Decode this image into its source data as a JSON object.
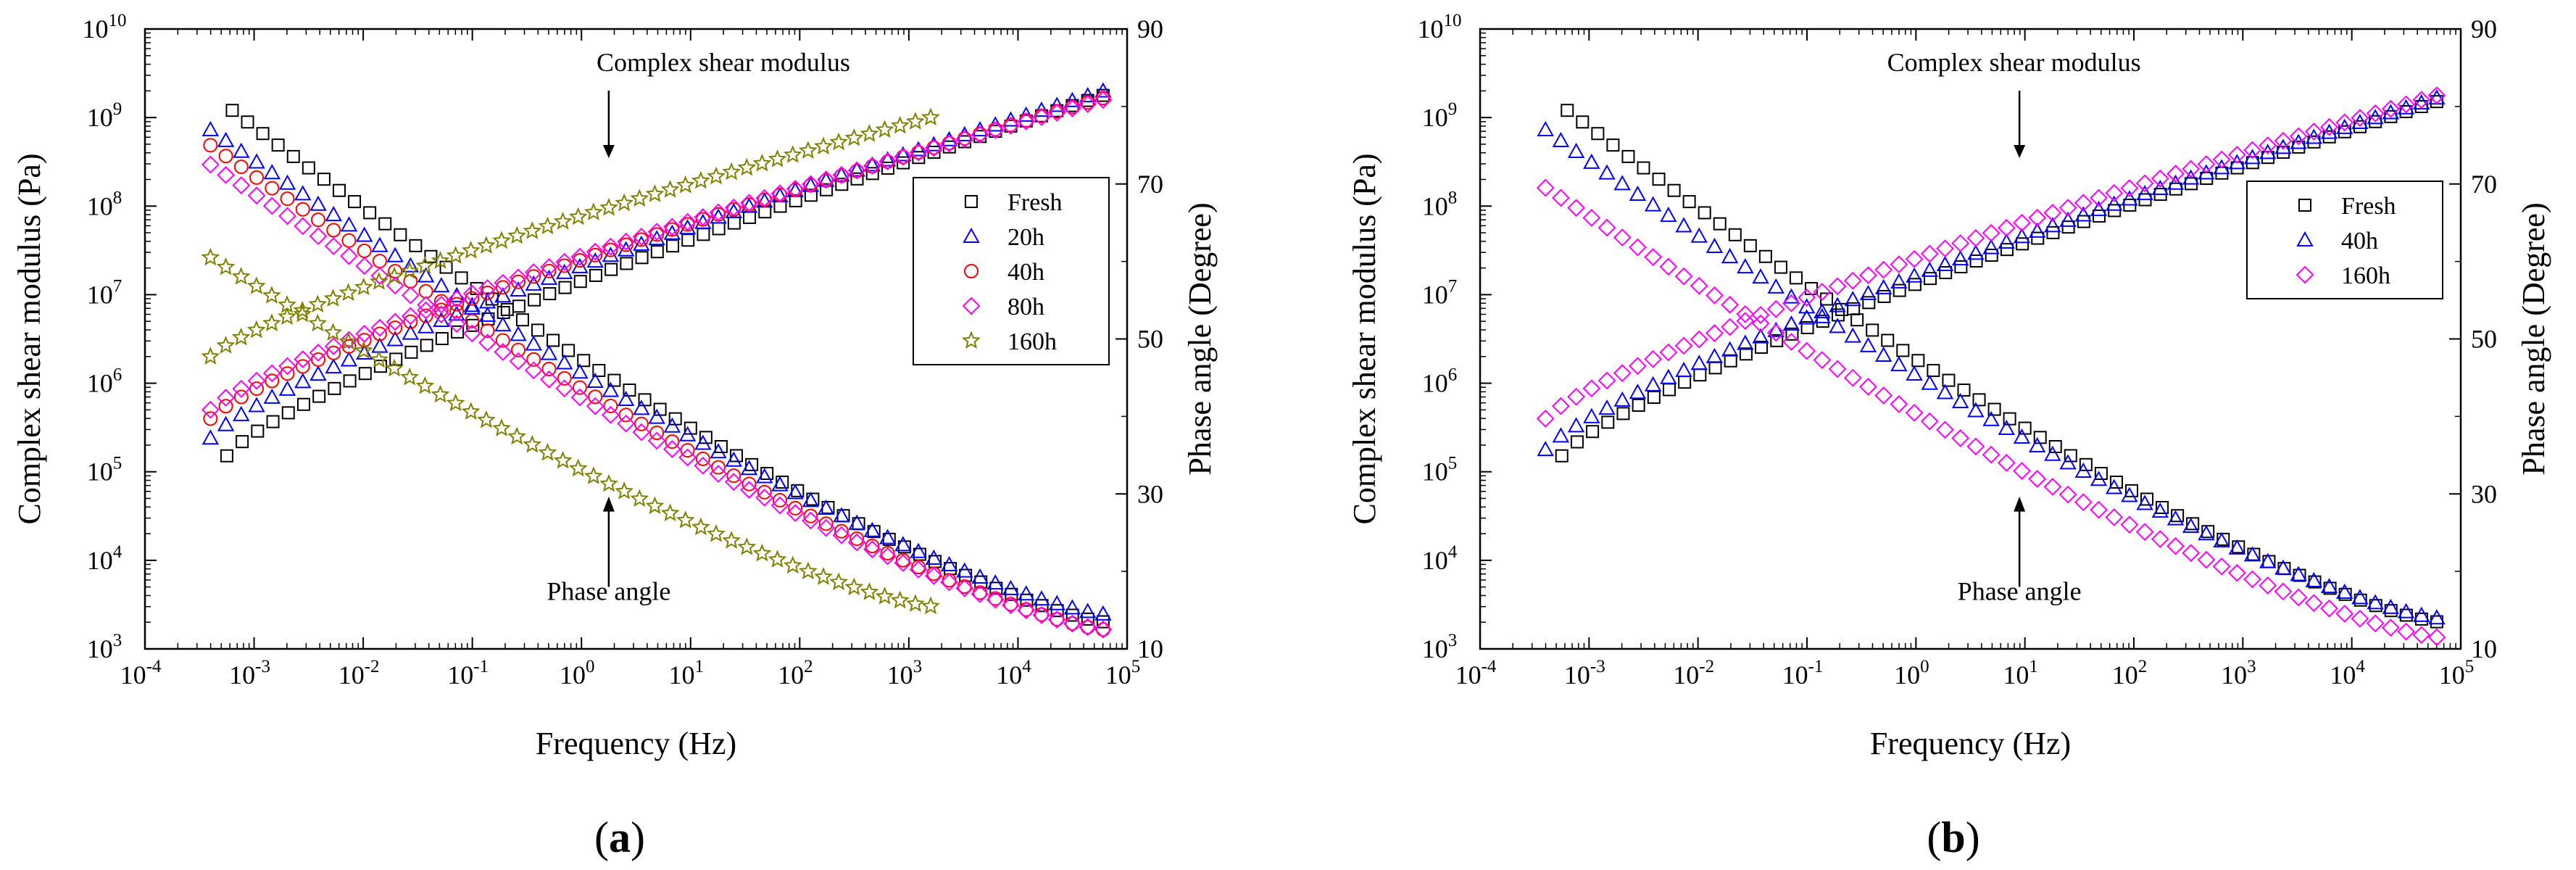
{
  "chart_data": [
    {
      "type": "scatter",
      "panel": "(a)",
      "panel_letter": "a",
      "xlabel": "Frequency (Hz)",
      "ylabel_left": "Complex shear modulus (Pa)",
      "ylabel_right": "Phase angle (Degree)",
      "xscale": "log",
      "xlim_exp": [
        -4,
        5
      ],
      "yscale_left": "log",
      "ylim_left_exp": [
        3,
        10
      ],
      "ylim_right": [
        10,
        90
      ],
      "right_ticks": [
        10,
        30,
        50,
        70,
        90
      ],
      "legend": [
        "Fresh",
        "20h",
        "40h",
        "80h",
        "160h"
      ],
      "legend_position": "center-right",
      "annotations": [
        "Complex shear modulus",
        "Phase angle"
      ],
      "series": [
        {
          "name": "Fresh",
          "marker": "square",
          "color": "#000000",
          "modulus_log10": {
            "start": [
              -3.25,
              5.18
            ],
            "end": [
              4.78,
              9.25
            ]
          },
          "phase_deg": {
            "start": [
              -3.2,
              79.5
            ],
            "end": [
              4.78,
              13.5
            ]
          }
        },
        {
          "name": "20h",
          "marker": "triangle",
          "color": "#0000ff",
          "modulus_log10": {
            "start": [
              -3.4,
              5.38
            ],
            "end": [
              4.78,
              9.3
            ]
          },
          "phase_deg": {
            "start": [
              -3.4,
              77
            ],
            "end": [
              4.78,
              14.5
            ]
          }
        },
        {
          "name": "40h",
          "marker": "circle",
          "color": "#ff0000",
          "modulus_log10": {
            "start": [
              -3.4,
              5.6
            ],
            "end": [
              4.78,
              9.22
            ]
          },
          "phase_deg": {
            "start": [
              -3.4,
              75
            ],
            "end": [
              4.78,
              12.5
            ]
          }
        },
        {
          "name": "80h",
          "marker": "diamond",
          "color": "#ff00ff",
          "modulus_log10": {
            "start": [
              -3.4,
              5.7
            ],
            "end": [
              4.78,
              9.2
            ]
          },
          "phase_deg": {
            "start": [
              -3.4,
              72.5
            ],
            "end": [
              4.78,
              12.5
            ]
          }
        },
        {
          "name": "160h",
          "marker": "star",
          "color": "#808000",
          "modulus_log10": {
            "start": [
              -3.4,
              6.3
            ],
            "end": [
              3.2,
              9.0
            ]
          },
          "phase_deg": {
            "start": [
              -3.4,
              60.5
            ],
            "end": [
              3.2,
              15.5
            ]
          }
        }
      ]
    },
    {
      "type": "scatter",
      "panel": "(b)",
      "panel_letter": "b",
      "xlabel": "Frequency (Hz)",
      "ylabel_left": "Complex shear modulus (Pa)",
      "ylabel_right": "Phase angle (Degree)",
      "xscale": "log",
      "xlim_exp": [
        -4,
        5
      ],
      "yscale_left": "log",
      "ylim_left_exp": [
        3,
        10
      ],
      "ylim_right": [
        10,
        90
      ],
      "right_ticks": [
        10,
        30,
        50,
        70,
        90
      ],
      "legend": [
        "Fresh",
        "40h",
        "160h"
      ],
      "legend_position": "center-right",
      "annotations": [
        "Complex shear modulus",
        "Phase angle"
      ],
      "series": [
        {
          "name": "Fresh",
          "marker": "square",
          "color": "#000000",
          "modulus_log10": {
            "start": [
              -3.25,
              5.18
            ],
            "end": [
              4.78,
              9.18
            ]
          },
          "phase_deg": {
            "start": [
              -3.2,
              79.5
            ],
            "end": [
              4.78,
              13.5
            ]
          }
        },
        {
          "name": "40h",
          "marker": "triangle",
          "color": "#0000ff",
          "modulus_log10": {
            "start": [
              -3.4,
              5.25
            ],
            "end": [
              4.78,
              9.22
            ]
          },
          "phase_deg": {
            "start": [
              -3.4,
              77
            ],
            "end": [
              4.78,
              14
            ]
          }
        },
        {
          "name": "160h",
          "marker": "diamond",
          "color": "#ff00ff",
          "modulus_log10": {
            "start": [
              -3.4,
              5.6
            ],
            "end": [
              4.78,
              9.25
            ]
          },
          "phase_deg": {
            "start": [
              -3.4,
              69.5
            ],
            "end": [
              4.78,
              11.5
            ]
          }
        }
      ]
    }
  ]
}
